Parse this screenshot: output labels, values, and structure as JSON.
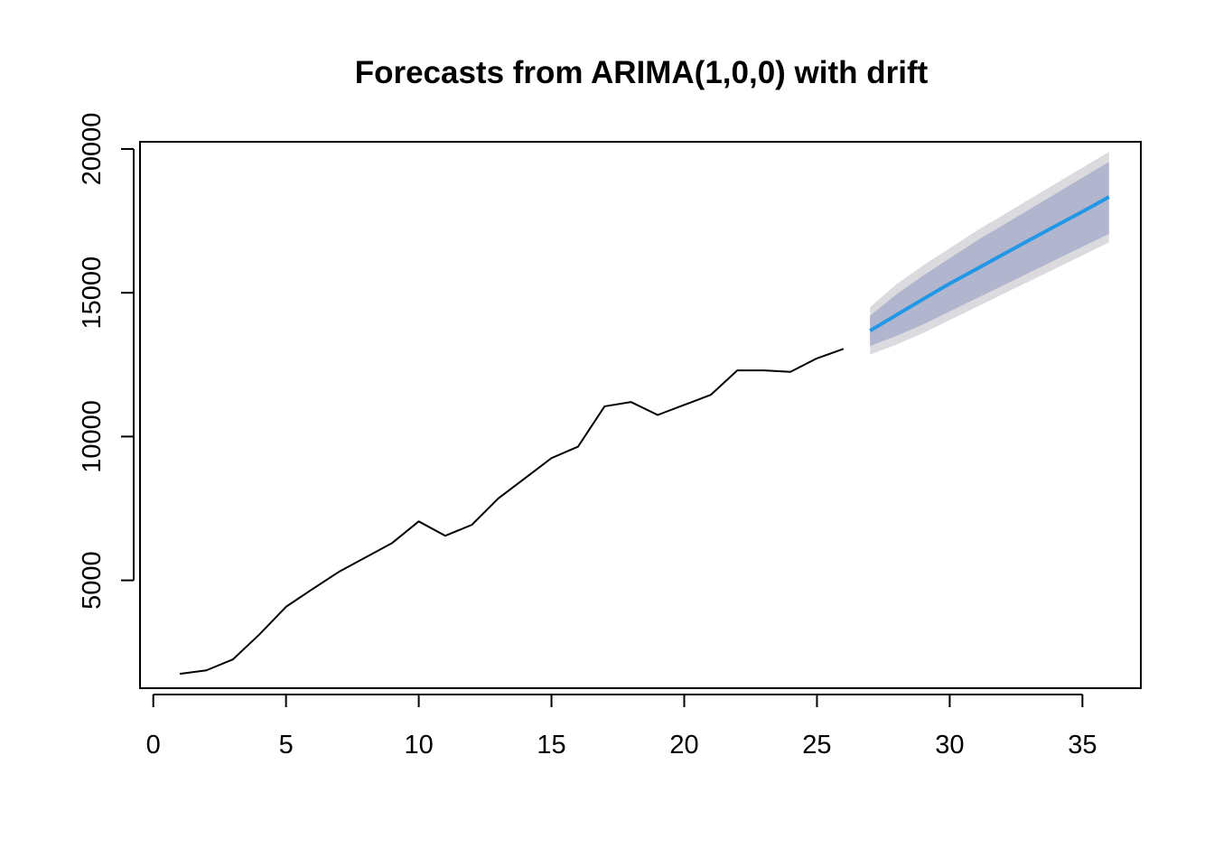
{
  "chart_data": {
    "type": "line",
    "title": "Forecasts from ARIMA(1,0,0) with drift",
    "xlabel": "",
    "ylabel": "",
    "xlim": [
      -0.5,
      37.2
    ],
    "ylim": [
      1250,
      20250
    ],
    "x_ticks": [
      "0",
      "5",
      "10",
      "15",
      "20",
      "25",
      "30",
      "35"
    ],
    "y_ticks": [
      "5000",
      "10000",
      "15000",
      "20000"
    ],
    "grid": false,
    "legend": "none",
    "colors": {
      "observed": "#000000",
      "forecast": "#2297E6",
      "band80": "#B1B5CE",
      "band95": "#DBDBDF"
    },
    "series": [
      {
        "x": [
          1,
          2,
          3,
          4,
          5,
          6,
          7,
          8,
          9,
          10,
          11,
          12,
          13,
          14,
          15,
          16,
          17,
          18,
          19,
          20,
          21,
          22,
          23,
          24,
          25,
          26
        ],
        "values": [
          1750,
          1870,
          2250,
          3120,
          4080,
          4700,
          5300,
          5800,
          6300,
          7050,
          6550,
          6930,
          7850,
          8550,
          9250,
          9650,
          11050,
          11200,
          10750,
          11100,
          11450,
          12300,
          12300,
          12250,
          12720,
          13050
        ]
      },
      {
        "x": [
          27,
          28,
          29,
          30,
          31,
          32,
          33,
          34,
          35,
          36
        ],
        "values": [
          13680,
          14230,
          14780,
          15320,
          15820,
          16330,
          16830,
          17330,
          17820,
          18330
        ]
      }
    ],
    "intervals": {
      "x": [
        27,
        28,
        29,
        30,
        31,
        32,
        33,
        34,
        35,
        36
      ],
      "lo80": [
        13150,
        13500,
        13900,
        14350,
        14800,
        15250,
        15700,
        16150,
        16600,
        17050
      ],
      "hi80": [
        14200,
        14950,
        15600,
        16200,
        16800,
        17350,
        17900,
        18450,
        19000,
        19550
      ],
      "lo95": [
        12850,
        13200,
        13600,
        14050,
        14500,
        14950,
        15400,
        15850,
        16300,
        16750
      ],
      "hi95": [
        14500,
        15300,
        15950,
        16550,
        17150,
        17700,
        18250,
        18800,
        19350,
        19900
      ]
    }
  }
}
